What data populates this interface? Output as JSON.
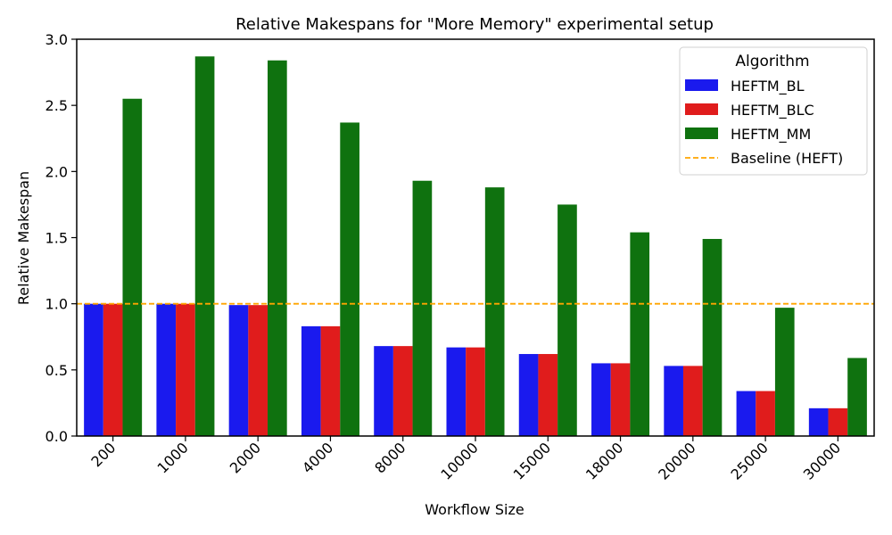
{
  "chart_data": {
    "type": "bar",
    "title": "Relative Makespans for \"More Memory\" experimental setup",
    "xlabel": "Workflow Size",
    "ylabel": "Relative Makespan",
    "ylim": [
      0,
      3.0
    ],
    "yticks": [
      "0.0",
      "0.5",
      "1.0",
      "1.5",
      "2.0",
      "2.5",
      "3.0"
    ],
    "ytick_values": [
      0,
      0.5,
      1.0,
      1.5,
      2.0,
      2.5,
      3.0
    ],
    "categories": [
      "200",
      "1000",
      "2000",
      "4000",
      "8000",
      "10000",
      "15000",
      "18000",
      "20000",
      "25000",
      "30000"
    ],
    "series": [
      {
        "name": "HEFTM_BL",
        "color": "#1a1aee",
        "values": [
          1.0,
          1.0,
          0.99,
          0.83,
          0.68,
          0.67,
          0.62,
          0.55,
          0.53,
          0.34,
          0.21
        ]
      },
      {
        "name": "HEFTM_BLC",
        "color": "#e01c1c",
        "values": [
          1.0,
          1.0,
          0.99,
          0.83,
          0.68,
          0.67,
          0.62,
          0.55,
          0.53,
          0.34,
          0.21
        ]
      },
      {
        "name": "HEFTM_MM",
        "color": "#0f720f",
        "values": [
          2.55,
          2.87,
          2.84,
          2.37,
          1.93,
          1.88,
          1.75,
          1.54,
          1.49,
          0.97,
          0.59
        ]
      }
    ],
    "baseline": {
      "name": "Baseline (HEFT)",
      "value": 1.0,
      "color": "#ffa500"
    },
    "legend": {
      "title": "Algorithm",
      "placement": "top-right"
    },
    "grid": false
  }
}
